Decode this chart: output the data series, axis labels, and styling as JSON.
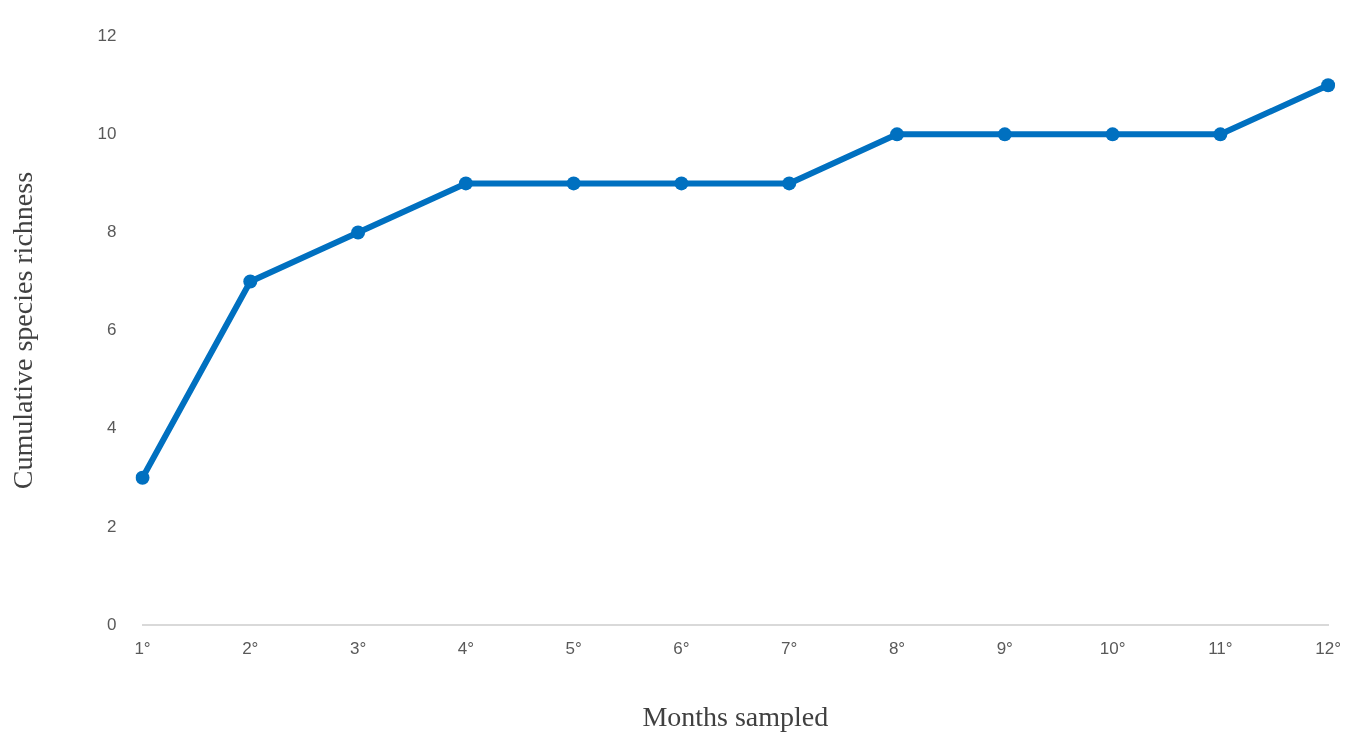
{
  "chart_data": {
    "type": "line",
    "xlabel": "Months sampled",
    "ylabel": "Cumulative species richness",
    "categories": [
      "1°",
      "2°",
      "3°",
      "4°",
      "5°",
      "6°",
      "7°",
      "8°",
      "9°",
      "10°",
      "11°",
      "12°"
    ],
    "series": [
      {
        "color": "#0070c0",
        "values": [
          3,
          7,
          8,
          9,
          9,
          9,
          9,
          10,
          10,
          10,
          10,
          11
        ]
      }
    ],
    "ylim": [
      0,
      12
    ],
    "yticks": [
      0,
      2,
      4,
      6,
      8,
      10,
      12
    ],
    "grid": false,
    "legend": false,
    "marker": "circle",
    "line_style": "solid"
  }
}
